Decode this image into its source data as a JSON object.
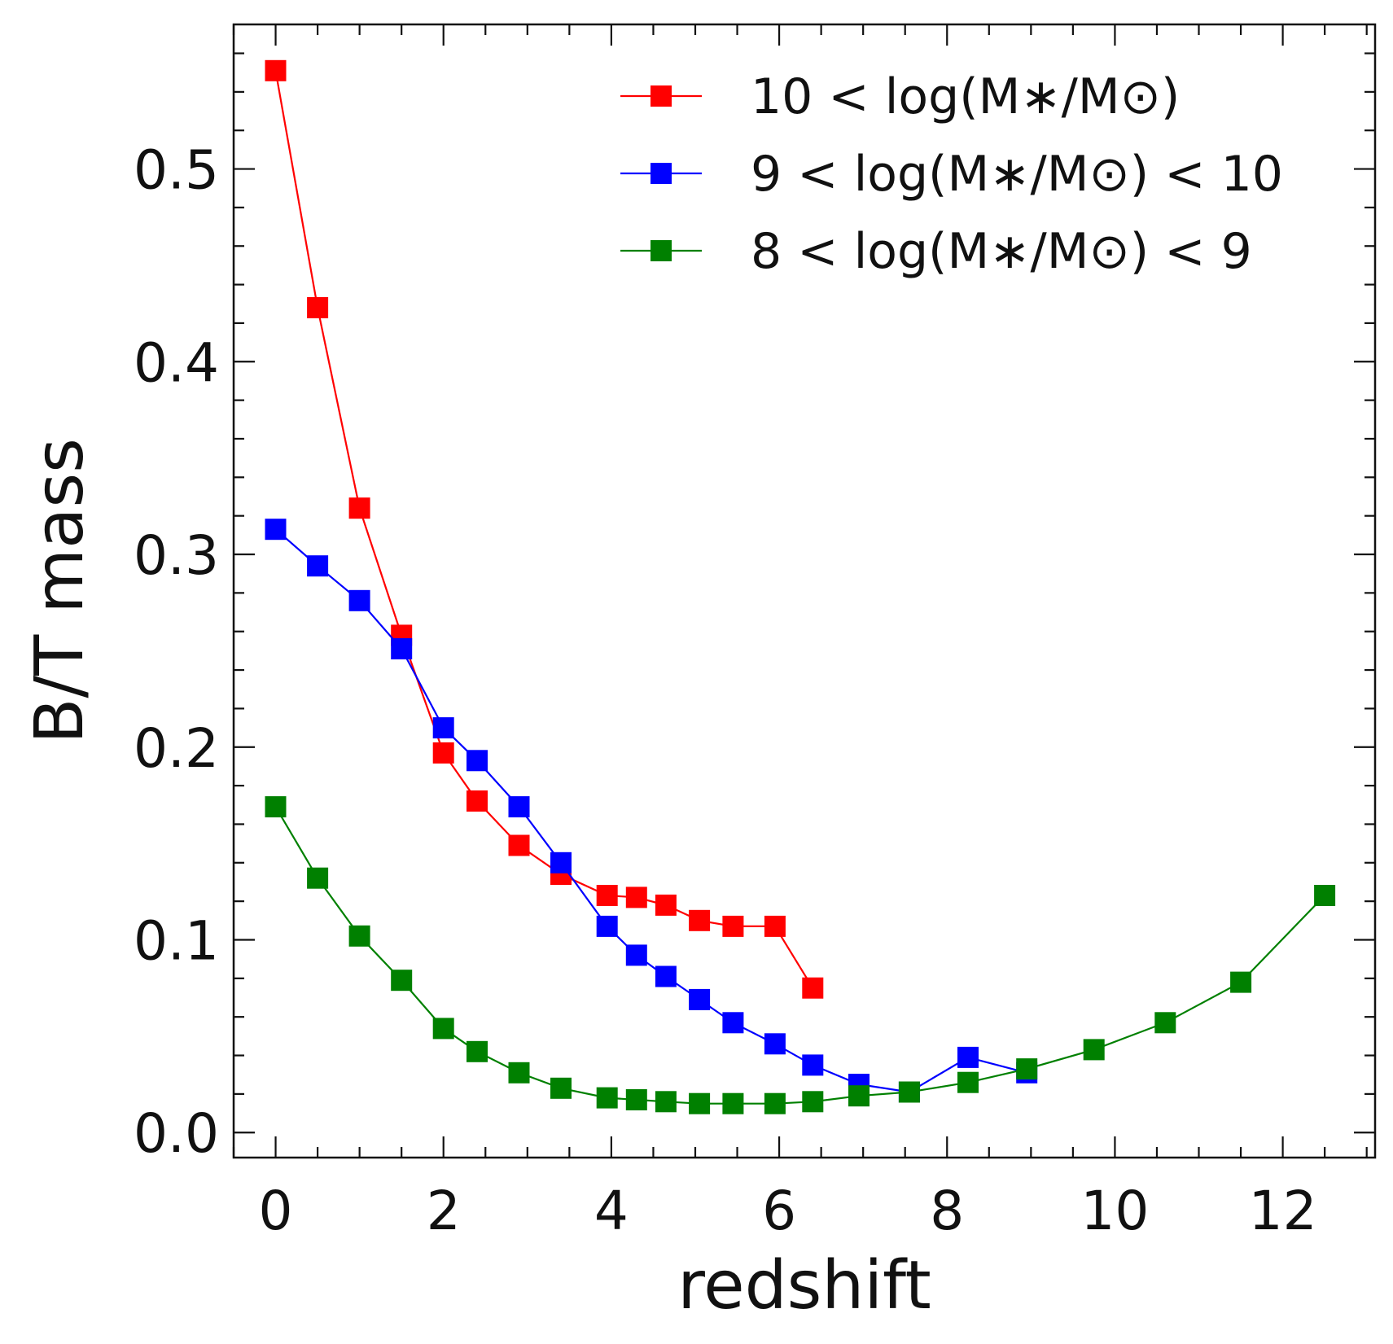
{
  "chart_data": {
    "type": "line",
    "title": "",
    "xlabel": "redshift",
    "ylabel": "B/T mass",
    "xlim": [
      -0.5,
      13.1
    ],
    "ylim": [
      -0.013,
      0.575
    ],
    "xticks": [
      0,
      2,
      4,
      6,
      8,
      10,
      12
    ],
    "xtick_labels": [
      "0",
      "2",
      "4",
      "6",
      "8",
      "10",
      "12"
    ],
    "yticks": [
      0.0,
      0.1,
      0.2,
      0.3,
      0.4,
      0.5
    ],
    "ytick_labels": [
      "0.0",
      "0.1",
      "0.2",
      "0.3",
      "0.4",
      "0.5"
    ],
    "grid": false,
    "legend_position": "top-right",
    "series": [
      {
        "name": "10 < log(M*/M⊙)",
        "legend_label": "10 < log(M∗/M⊙)",
        "color": "#ff0000",
        "marker": "square",
        "x": [
          0.0,
          0.5,
          1.0,
          1.5,
          2.0,
          2.4,
          2.9,
          3.4,
          3.95,
          4.3,
          4.65,
          5.05,
          5.45,
          5.95,
          6.4
        ],
        "y": [
          0.551,
          0.428,
          0.324,
          0.258,
          0.197,
          0.172,
          0.149,
          0.134,
          0.123,
          0.122,
          0.118,
          0.11,
          0.107,
          0.107,
          0.075
        ]
      },
      {
        "name": "9 < log(M*/M⊙) < 10",
        "legend_label": "9 < log(M∗/M⊙) < 10",
        "color": "#0000ff",
        "marker": "square",
        "x": [
          0.0,
          0.5,
          1.0,
          1.5,
          2.0,
          2.4,
          2.9,
          3.4,
          3.95,
          4.3,
          4.65,
          5.05,
          5.45,
          5.95,
          6.4,
          6.95,
          7.55,
          8.25,
          8.95
        ],
        "y": [
          0.313,
          0.294,
          0.276,
          0.251,
          0.21,
          0.193,
          0.169,
          0.14,
          0.107,
          0.092,
          0.081,
          0.069,
          0.057,
          0.046,
          0.035,
          0.025,
          0.021,
          0.039,
          0.031
        ]
      },
      {
        "name": "8 < log(M*/M⊙) < 9",
        "legend_label": "8 < log(M∗/M⊙) < 9",
        "color": "#008000",
        "marker": "square",
        "x": [
          0.0,
          0.5,
          1.0,
          1.5,
          2.0,
          2.4,
          2.9,
          3.4,
          3.95,
          4.3,
          4.65,
          5.05,
          5.45,
          5.95,
          6.4,
          6.95,
          7.55,
          8.25,
          8.95,
          9.75,
          10.6,
          11.5,
          12.5
        ],
        "y": [
          0.169,
          0.132,
          0.102,
          0.079,
          0.054,
          0.042,
          0.031,
          0.023,
          0.018,
          0.017,
          0.016,
          0.015,
          0.015,
          0.015,
          0.016,
          0.019,
          0.021,
          0.026,
          0.033,
          0.043,
          0.057,
          0.078,
          0.123
        ]
      }
    ]
  }
}
